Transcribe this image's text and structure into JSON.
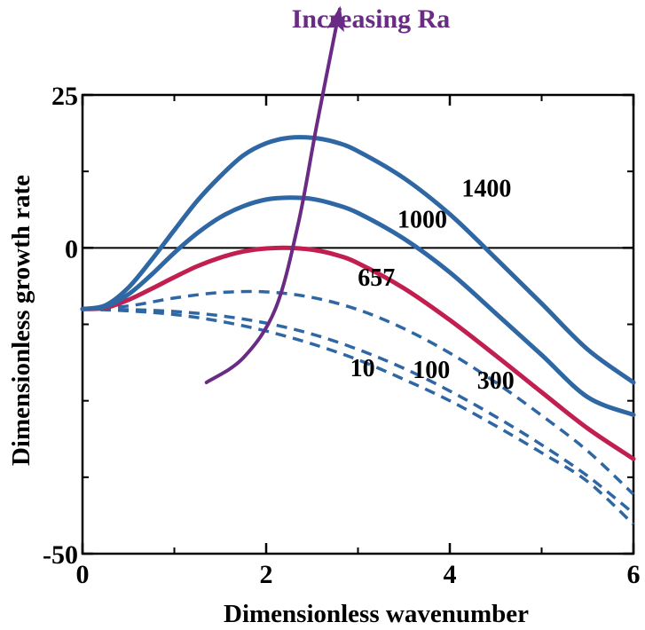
{
  "chart_data": {
    "type": "line",
    "title": "",
    "xlabel": "Dimensionless wavenumber",
    "ylabel": "Dimensionless growth rate",
    "xlim": [
      0,
      6
    ],
    "ylim": [
      -50,
      25
    ],
    "xticks": [
      0,
      2,
      4,
      6
    ],
    "xtick_labels": [
      "0",
      "2",
      "4",
      "6"
    ],
    "yticks": [
      25,
      0,
      -50
    ],
    "ytick_labels": [
      "25",
      "0",
      "-50"
    ],
    "zero_line": true,
    "grid": false,
    "legend": "none",
    "colors": {
      "stable": "#2e67a3",
      "unstable": "#2e67a3",
      "critical": "#c21f51",
      "arrow": "#6a2b85",
      "zero_line": "#000000"
    },
    "series": [
      {
        "name": "10",
        "style": "dashed",
        "x": [
          0,
          0.5,
          1,
          1.5,
          2,
          2.5,
          3,
          3.5,
          4,
          4.5,
          5,
          5.5,
          6
        ],
        "y": [
          -10,
          -10.3,
          -10.9,
          -12,
          -13.6,
          -15.7,
          -18.3,
          -21.5,
          -25,
          -29.1,
          -33.5,
          -38.2,
          -45.2
        ]
      },
      {
        "name": "100",
        "style": "dashed",
        "x": [
          0,
          0.5,
          1,
          1.5,
          2,
          2.5,
          3,
          3.5,
          4,
          4.5,
          5,
          5.5,
          6
        ],
        "y": [
          -10,
          -10.1,
          -10.4,
          -11.1,
          -12.3,
          -14.1,
          -16.6,
          -19.7,
          -23.4,
          -27.6,
          -32.2,
          -37.3,
          -43.4
        ]
      },
      {
        "name": "300",
        "style": "dashed",
        "x": [
          0,
          0.5,
          1,
          1.5,
          2,
          2.5,
          3,
          3.5,
          4,
          4.5,
          5,
          5.5,
          6
        ],
        "y": [
          -10,
          -9.5,
          -8.2,
          -7.3,
          -7.2,
          -8.1,
          -10.1,
          -13.2,
          -17.2,
          -22,
          -27.4,
          -33.2,
          -40.3
        ]
      },
      {
        "name": "657",
        "style": "solid",
        "highlight": true,
        "x": [
          0,
          0.25,
          0.5,
          0.75,
          1,
          1.25,
          1.5,
          1.75,
          2,
          2.25,
          2.5,
          2.75,
          3,
          3.5,
          4,
          4.5,
          5,
          5.5,
          6
        ],
        "y": [
          -10,
          -9.8,
          -8.5,
          -6.7,
          -4.8,
          -3,
          -1.6,
          -0.6,
          -0.1,
          0,
          -0.3,
          -1.1,
          -2.5,
          -6.6,
          -11.8,
          -17.6,
          -23.6,
          -29.5,
          -34.5
        ]
      },
      {
        "name": "1000",
        "style": "solid",
        "x": [
          0,
          0.25,
          0.5,
          0.75,
          1,
          1.25,
          1.5,
          1.75,
          2,
          2.25,
          2.5,
          2.75,
          3,
          3.5,
          4,
          4.5,
          5,
          5.5,
          6
        ],
        "y": [
          -10,
          -9.6,
          -7.6,
          -4.4,
          -0.8,
          2.4,
          5,
          6.8,
          7.9,
          8.2,
          8,
          7.1,
          5.7,
          1.5,
          -4,
          -10.7,
          -17.5,
          -24.4,
          -27.3
        ]
      },
      {
        "name": "1400",
        "style": "solid",
        "x": [
          0,
          0.25,
          0.5,
          0.75,
          1,
          1.25,
          1.5,
          1.75,
          2,
          2.25,
          2.5,
          2.75,
          3,
          3.5,
          4,
          4.5,
          5,
          5.5,
          6
        ],
        "y": [
          -10,
          -9.4,
          -6.5,
          -2,
          2.9,
          7.7,
          11.7,
          15.1,
          17.1,
          18,
          18,
          17.3,
          15.8,
          11.4,
          5.5,
          -1.7,
          -9.1,
          -16.6,
          -22
        ]
      }
    ],
    "curve_labels": [
      {
        "text": "10",
        "x": 3.05,
        "y": -21
      },
      {
        "text": "100",
        "x": 3.8,
        "y": -21.3
      },
      {
        "text": "300",
        "x": 4.5,
        "y": -23
      },
      {
        "text": "657",
        "x": 3.2,
        "y": -6.2
      },
      {
        "text": "1000",
        "x": 3.7,
        "y": 3.3
      },
      {
        "text": "1400",
        "x": 4.4,
        "y": 8.4
      }
    ],
    "annotation": {
      "text": "Increasing Ra",
      "arrow_path": [
        [
          1.35,
          -22
        ],
        [
          1.75,
          -18
        ],
        [
          2.1,
          -10
        ],
        [
          2.35,
          4
        ],
        [
          2.55,
          20
        ],
        [
          2.8,
          39
        ]
      ]
    }
  }
}
